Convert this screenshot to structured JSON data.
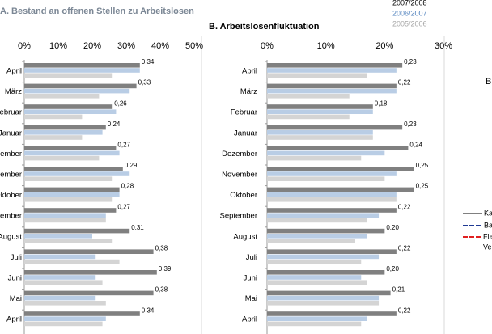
{
  "chart_data": [
    {
      "type": "bar",
      "orientation": "horizontal",
      "title": "A. Bestand an offenen Stellen zu Arbeitslosen",
      "categories": [
        "April",
        "März",
        "Februar",
        "Januar",
        "Dezember",
        "November",
        "Oktober",
        "September",
        "August",
        "Juli",
        "Juni",
        "Mai",
        "April"
      ],
      "series": [
        {
          "name": "2007/2008",
          "color": "#808080",
          "values": [
            34,
            33,
            26,
            24,
            27,
            29,
            28,
            27,
            31,
            38,
            39,
            38,
            34
          ],
          "value_labels": [
            "0,34",
            "0,33",
            "0,26",
            "0,24",
            "0,27",
            "0,29",
            "0,28",
            "0,27",
            "0,31",
            "0,38",
            "0,39",
            "0,38",
            "0,34"
          ]
        },
        {
          "name": "2006/2007",
          "color": "#b9cde5",
          "values": [
            34,
            31,
            27,
            23,
            28,
            31,
            28,
            24,
            20,
            21,
            21,
            21,
            24
          ]
        },
        {
          "name": "2005/2006",
          "color": "#d4d4d4",
          "values": [
            26,
            22,
            17,
            17,
            22,
            26,
            26,
            24,
            26,
            28,
            23,
            24,
            23
          ]
        }
      ],
      "xlim": [
        0,
        50
      ],
      "xticks": [
        {
          "value": 0,
          "label": "0%"
        },
        {
          "value": 10,
          "label": "10%"
        },
        {
          "value": 20,
          "label": "20%"
        },
        {
          "value": 30,
          "label": "30%"
        },
        {
          "value": 40,
          "label": "40%"
        },
        {
          "value": 50,
          "label": "50%"
        }
      ]
    },
    {
      "type": "bar",
      "orientation": "horizontal",
      "title": "B. Arbeitslosenfluktuation",
      "categories": [
        "April",
        "März",
        "Februar",
        "Januar",
        "Dezember",
        "November",
        "Oktober",
        "September",
        "August",
        "Juli",
        "Juni",
        "Mai",
        "April"
      ],
      "series": [
        {
          "name": "2007/2008",
          "color": "#808080",
          "values": [
            23,
            22,
            18,
            23,
            24,
            25,
            25,
            22,
            20,
            22,
            20,
            21,
            22
          ],
          "value_labels": [
            "0,23",
            "0,22",
            "0,18",
            "0,23",
            "0,24",
            "0,25",
            "0,25",
            "0,22",
            "0,20",
            "0,22",
            "0,20",
            "0,21",
            "0,22"
          ]
        },
        {
          "name": "2006/2007",
          "color": "#b9cde5",
          "values": [
            22,
            22,
            18,
            18,
            20,
            22,
            22,
            19,
            17,
            19,
            16,
            19,
            17
          ]
        },
        {
          "name": "2005/2006",
          "color": "#d4d4d4",
          "values": [
            17,
            14,
            14,
            18,
            16,
            20,
            22,
            17,
            15,
            16,
            17,
            19,
            16
          ]
        }
      ],
      "xlim": [
        0,
        30
      ],
      "xticks": [
        {
          "value": 0,
          "label": "0%"
        },
        {
          "value": 10,
          "label": "10%"
        },
        {
          "value": 20,
          "label": "20%"
        },
        {
          "value": 30,
          "label": "30%"
        }
      ]
    }
  ],
  "side_panel": {
    "title": "B",
    "legend": [
      "Ka",
      "Ba",
      "Fla",
      "Ve"
    ]
  }
}
